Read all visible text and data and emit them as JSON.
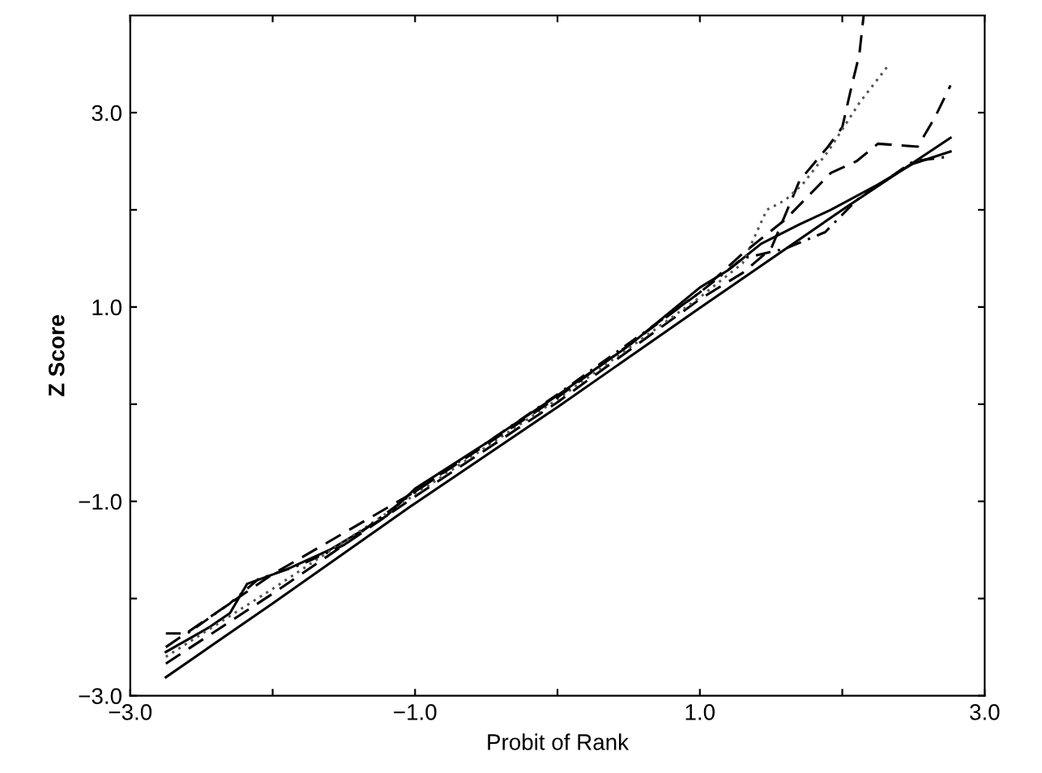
{
  "chart_data": {
    "type": "line",
    "xlabel": "Probit of Rank",
    "ylabel": "Z Score",
    "xlim": [
      -3,
      3
    ],
    "ylim": [
      -3,
      4
    ],
    "grid": false,
    "marker": "none",
    "xticks": [
      {
        "value": -3,
        "label": "−3.0"
      },
      {
        "value": -2,
        "label": null
      },
      {
        "value": -1,
        "label": "−1.0"
      },
      {
        "value": 0,
        "label": null
      },
      {
        "value": 1,
        "label": "1.0"
      },
      {
        "value": 2,
        "label": null
      },
      {
        "value": 3,
        "label": "3.0"
      }
    ],
    "yticks": [
      {
        "value": -3,
        "label": "−3.0"
      },
      {
        "value": -2,
        "label": null
      },
      {
        "value": -1,
        "label": "−1.0"
      },
      {
        "value": 0,
        "label": null
      },
      {
        "value": 1,
        "label": "1.0"
      },
      {
        "value": 2,
        "label": null
      },
      {
        "value": 3,
        "label": "3.0"
      }
    ],
    "series": [
      {
        "color": "#000000",
        "line_style": "solid",
        "x": [
          -2.75,
          -2,
          -1,
          0,
          1,
          2,
          2.76
        ],
        "values": [
          -2.81,
          -2.05,
          -1.02,
          -0.03,
          0.99,
          2.0,
          2.74
        ]
      },
      {
        "color": "#000000",
        "line_style": "solid",
        "x": [
          -2.75,
          -2.45,
          -2.3,
          -2.18,
          -1.9,
          -1.6,
          -1.2,
          -1,
          -0.5,
          0,
          0.5,
          1,
          1.2,
          1.43,
          1.7,
          1.92,
          2.25,
          2.49,
          2.76
        ],
        "values": [
          -2.55,
          -2.3,
          -2.15,
          -1.85,
          -1.7,
          -1.5,
          -1.15,
          -0.87,
          -0.4,
          0.09,
          0.6,
          1.2,
          1.38,
          1.65,
          1.85,
          2.0,
          2.26,
          2.47,
          2.6
        ]
      },
      {
        "color": "#000000",
        "line_style": "dashed",
        "x": [
          -2.75,
          -2,
          -1,
          0,
          1,
          1.3,
          1.5,
          1.7,
          1.9,
          2.0,
          2.07,
          2.12,
          2.15
        ],
        "values": [
          -2.67,
          -1.95,
          -0.95,
          0.02,
          1.08,
          1.35,
          1.6,
          2.3,
          2.65,
          2.85,
          3.3,
          3.6,
          4.0
        ]
      },
      {
        "color": "#555555",
        "line_style": "dotted",
        "x": [
          -2.75,
          -2,
          -1,
          0,
          1,
          1.3,
          1.47,
          1.6,
          1.72,
          1.9,
          2.12,
          2.33
        ],
        "values": [
          -2.6,
          -1.9,
          -0.93,
          0.05,
          1.1,
          1.45,
          2.0,
          2.1,
          2.26,
          2.6,
          3.1,
          3.5
        ]
      },
      {
        "color": "#000000",
        "line_style": "dashed",
        "x": [
          -2.75,
          -2,
          -1,
          0,
          1,
          1.3,
          1.6,
          1.92,
          2.1,
          2.25,
          2.53,
          2.65,
          2.76
        ],
        "values": [
          -2.5,
          -1.75,
          -0.9,
          0.07,
          1.15,
          1.55,
          1.9,
          2.38,
          2.5,
          2.68,
          2.65,
          2.95,
          3.28
        ]
      },
      {
        "color": "#000000",
        "line_style": "dashdot",
        "x": [
          -2.75,
          -2.6,
          -2.3,
          -2.1,
          -1.8,
          -1.5,
          -1,
          0,
          1,
          1.3,
          1.6,
          1.88,
          2.1,
          2.3,
          2.5,
          2.76
        ],
        "values": [
          -2.36,
          -2.36,
          -2.05,
          -1.8,
          -1.65,
          -1.45,
          -0.9,
          0.1,
          1.15,
          1.5,
          1.6,
          1.77,
          2.1,
          2.3,
          2.5,
          2.55
        ]
      }
    ]
  }
}
